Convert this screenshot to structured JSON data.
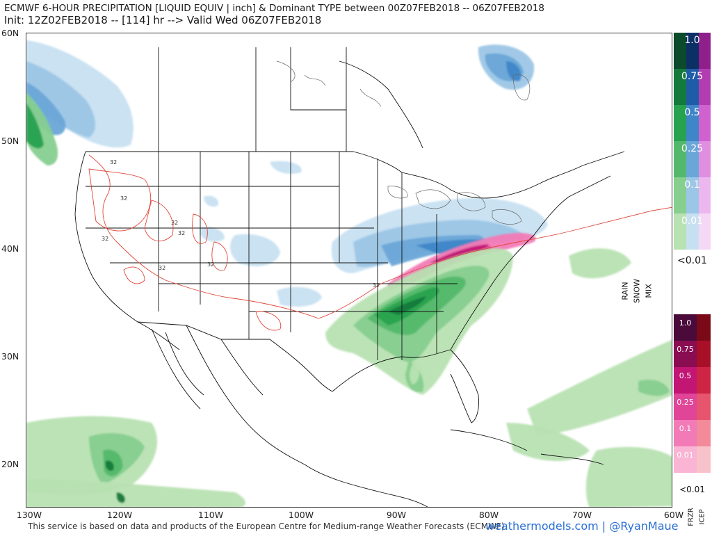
{
  "header": {
    "title_line1": "ECMWF 6-HOUR PRECIPITATION [LIQUID EQUIV | inch] & Dominant TYPE between 00Z07FEB2018 -- 06Z07FEB2018",
    "title_line2": "Init: 12Z02FEB2018 -- [114] hr --> Valid Wed 06Z07FEB2018"
  },
  "axes": {
    "lat_labels": [
      "60N",
      "50N",
      "40N",
      "30N",
      "20N"
    ],
    "lon_labels": [
      "130W",
      "120W",
      "110W",
      "100W",
      "90W",
      "80W",
      "70W",
      "60W"
    ]
  },
  "legend": {
    "rain_snow_mix": {
      "levels": [
        "1.0",
        "0.75",
        "0.5",
        "0.25",
        "0.1",
        "0.01"
      ],
      "below_label": "<0.01",
      "column_labels": [
        "RAIN",
        "SNOW",
        "MIX"
      ]
    },
    "frzr_icep": {
      "levels": [
        "1.0",
        "0.75",
        "0.5",
        "0.25",
        "0.1",
        "0.01"
      ],
      "below_label": "<0.01",
      "column_labels": [
        "FRZR",
        "ICEP"
      ]
    }
  },
  "contour_labels": [
    "32",
    "32",
    "32",
    "32",
    "32",
    "32",
    "32",
    "32"
  ],
  "footer": {
    "credit": "This service is based on data and products of the European Centre for Medium-range Weather Forecasts (ECMWF)",
    "brand": "weathermodels.com | @RyanMaue"
  },
  "colors": {
    "rain": [
      "#0b4a2b",
      "#147a3c",
      "#27a24f",
      "#53b86b",
      "#86cf8f",
      "#b8e2b2"
    ],
    "snow": [
      "#0c2f66",
      "#1f5ca8",
      "#3f86c8",
      "#6aa7d8",
      "#9cc6e6",
      "#c7e0f1"
    ],
    "mix": [
      "#8f1f8a",
      "#b23db0",
      "#cf62cf",
      "#de8fe0",
      "#ecb7ee",
      "#f5d8f6"
    ],
    "frzr": [
      "#4a0b3a",
      "#8a0d52",
      "#c21574",
      "#e04597",
      "#f27ab6",
      "#f9b5d3"
    ],
    "icep": [
      "#7a0a18",
      "#a81028",
      "#cf2545",
      "#e6556d",
      "#f28a9a",
      "#f8c2ca"
    ],
    "contour": "#e0473a",
    "border": "#111111"
  }
}
